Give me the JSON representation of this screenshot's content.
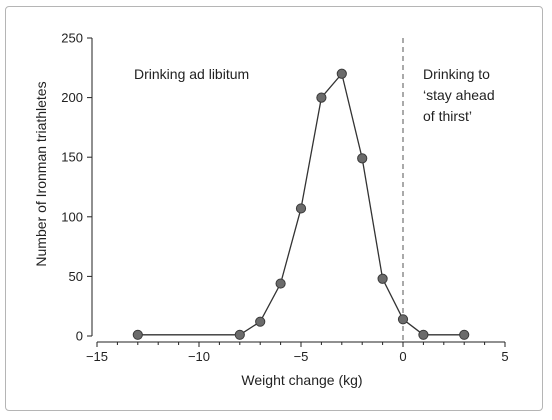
{
  "chart_data": {
    "type": "line",
    "title": "",
    "xlabel": "Weight change (kg)",
    "ylabel": "Number of Ironman triathletes",
    "xlim": [
      -15,
      5
    ],
    "ylim": [
      0,
      250
    ],
    "xticks": [
      -15,
      -10,
      -5,
      0,
      5
    ],
    "yticks": [
      0,
      50,
      100,
      150,
      200,
      250
    ],
    "xtick_labels": [
      "−15",
      "−10",
      "−5",
      "0",
      "5"
    ],
    "ytick_labels": [
      "0",
      "50",
      "100",
      "150",
      "200",
      "250"
    ],
    "grid": false,
    "series": [
      {
        "x": [
          -13,
          -8,
          -7,
          -6,
          -5,
          -4,
          -3,
          -2,
          -1,
          0,
          1,
          3
        ],
        "y": [
          1,
          1,
          12,
          44,
          107,
          200,
          220,
          149,
          48,
          14,
          1,
          1
        ]
      }
    ],
    "reference_line": {
      "x": 0,
      "style": "dashed"
    },
    "annotations": {
      "left": [
        "Drinking ad libitum"
      ],
      "right": [
        "Drinking to",
        "‘stay ahead",
        "of thirst’"
      ]
    },
    "colors": {
      "line": "#333333",
      "marker": "#6b6b6b",
      "axis": "#222222"
    }
  }
}
